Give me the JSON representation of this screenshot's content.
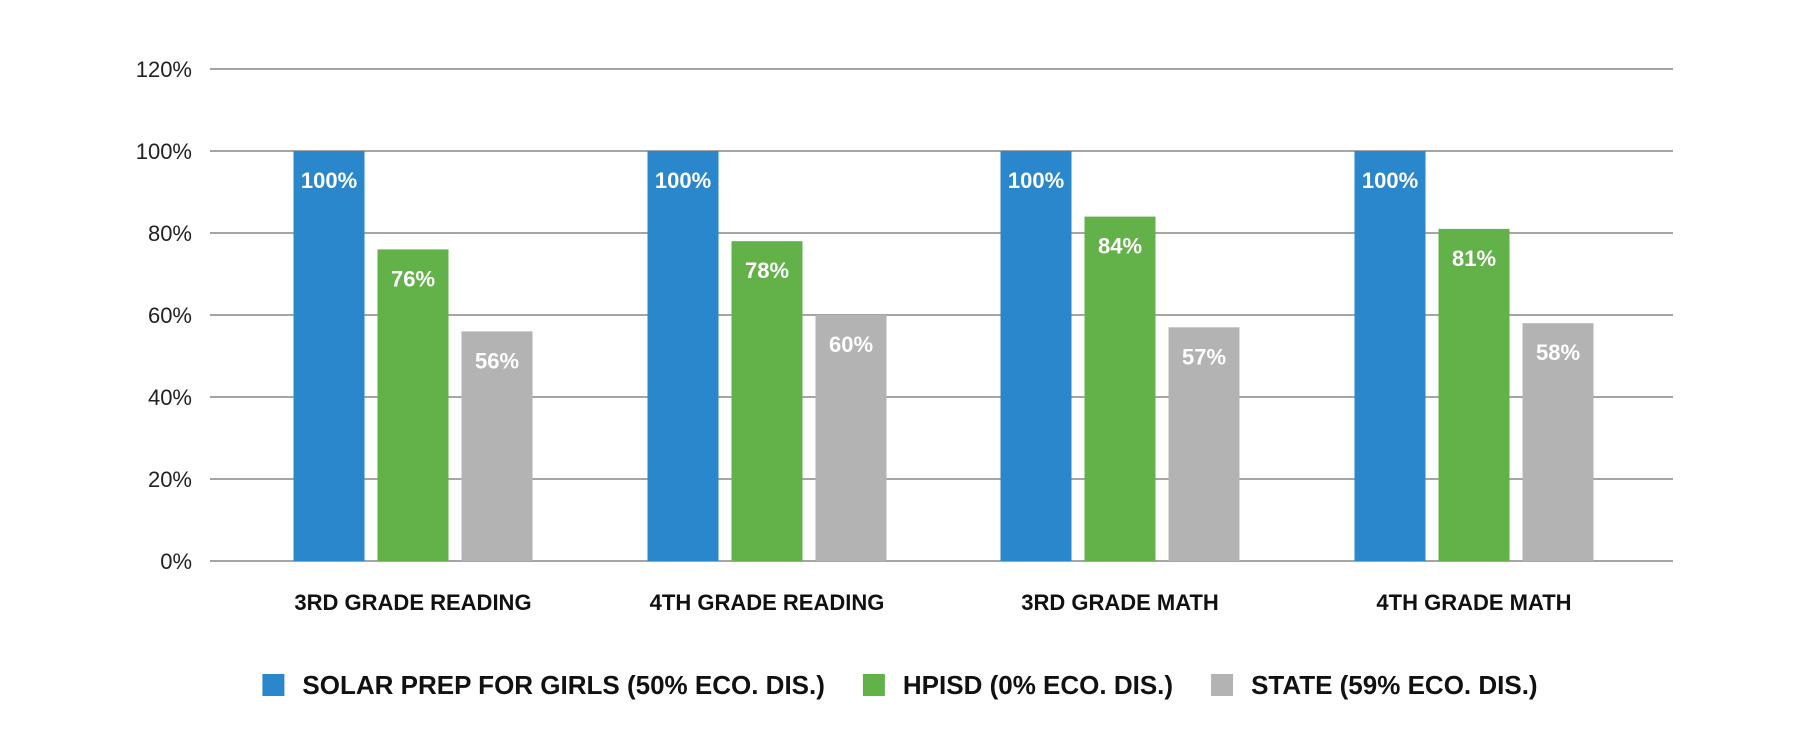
{
  "chart_data": {
    "type": "bar",
    "categories": [
      "3RD GRADE READING",
      "4TH GRADE READING",
      "3RD GRADE MATH",
      "4TH GRADE MATH"
    ],
    "series": [
      {
        "name": "SOLAR PREP FOR GIRLS (50% ECO. DIS.)",
        "color": "#2b87cc",
        "values": [
          100,
          100,
          100,
          100
        ],
        "labels": [
          "100%",
          "100%",
          "100%",
          "100%"
        ]
      },
      {
        "name": "HPISD (0% ECO. DIS.)",
        "color": "#62b249",
        "values": [
          76,
          78,
          84,
          81
        ],
        "labels": [
          "76%",
          "78%",
          "84%",
          "81%"
        ]
      },
      {
        "name": "STATE (59% ECO. DIS.)",
        "color": "#b3b3b3",
        "values": [
          56,
          60,
          57,
          58
        ],
        "labels": [
          "56%",
          "60%",
          "57%",
          "58%"
        ]
      }
    ],
    "yticks": [
      "0%",
      "20%",
      "40%",
      "60%",
      "80%",
      "100%",
      "120%"
    ],
    "ylim": [
      0,
      120
    ],
    "grid": true,
    "legend_position": "bottom"
  }
}
